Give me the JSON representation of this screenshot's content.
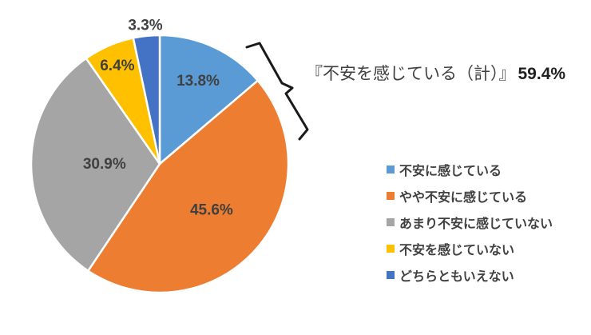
{
  "figure": {
    "background": "#ffffff"
  },
  "chart_data": {
    "type": "pie",
    "title": "",
    "categories": [
      "不安に感じている",
      "やや不安に感じている",
      "あまり不安に感じていない",
      "不安を感じていない",
      "どちらともいえない"
    ],
    "values": [
      13.8,
      45.6,
      30.9,
      6.4,
      3.3
    ],
    "value_labels": [
      "13.8%",
      "45.6%",
      "30.9%",
      "6.4%",
      "3.3%"
    ],
    "colors": [
      "#5B9BD5",
      "#ED7D31",
      "#A5A5A5",
      "#FFC000",
      "#4472C4"
    ],
    "start_angle_deg": 0,
    "direction": "clockwise",
    "legend_position": "right",
    "slice_border_color": "#FFFFFF",
    "label_color": "#404040",
    "label_radius_fractions": [
      0.71,
      0.54,
      0.43,
      0.83,
      1.08
    ]
  },
  "annotation": {
    "text": "『不安を感じている（計）』",
    "value": "59.4%",
    "bracket_color": "#1a1a1a"
  }
}
